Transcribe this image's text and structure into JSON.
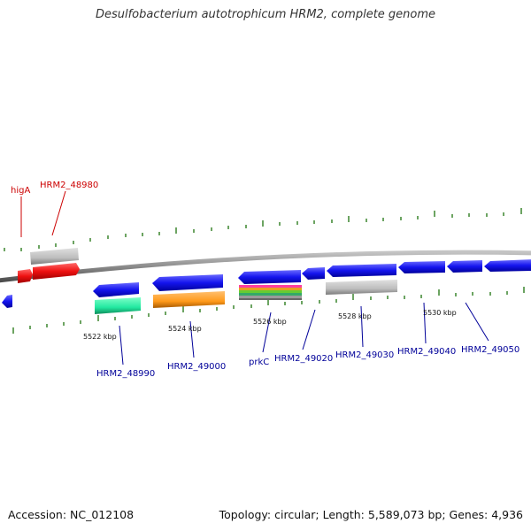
{
  "title": "Desulfobacterium autotrophicum HRM2, complete genome",
  "footer": {
    "accession": "Accession: NC_012108",
    "summary": "Topology: circular; Length: 5,589,073 bp; Genes: 4,936"
  },
  "colors": {
    "backbone": "#8a8a8a",
    "tick": "#2e7d1e",
    "forward_gene": "#e01010",
    "reverse_gene": "#1010e0",
    "pseudo": "#b8b8b8",
    "label_red": "#cc0000",
    "label_blue": "#000099"
  },
  "scale_labels": [
    "5522 kbp",
    "5524 kbp",
    "5526 kbp",
    "5528 kbp",
    "5530 kbp"
  ],
  "gene_labels": [
    {
      "id": "higA",
      "text": "higA",
      "strand": "forward"
    },
    {
      "id": "HRM2_48980",
      "text": "HRM2_48980",
      "strand": "forward"
    },
    {
      "id": "HRM2_48990",
      "text": "HRM2_48990",
      "strand": "reverse"
    },
    {
      "id": "HRM2_49000",
      "text": "HRM2_49000",
      "strand": "reverse"
    },
    {
      "id": "prkC",
      "text": "prkC",
      "strand": "reverse"
    },
    {
      "id": "HRM2_49020",
      "text": "HRM2_49020",
      "strand": "reverse"
    },
    {
      "id": "HRM2_49030",
      "text": "HRM2_49030",
      "strand": "reverse"
    },
    {
      "id": "HRM2_49040",
      "text": "HRM2_49040",
      "strand": "reverse"
    },
    {
      "id": "HRM2_49050",
      "text": "HRM2_49050",
      "strand": "reverse"
    }
  ]
}
